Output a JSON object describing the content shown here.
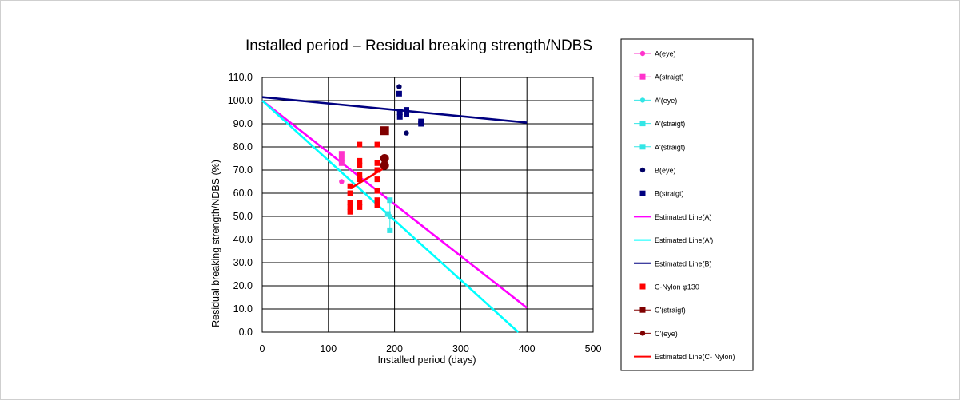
{
  "chart_data": {
    "type": "scatter",
    "title": "Installed period – Residual breaking strength/NDBS",
    "xlabel": "Installed period (days)",
    "ylabel": "Residual breaking strength/NDBS (%)",
    "xlim": [
      0,
      500
    ],
    "ylim": [
      0,
      110
    ],
    "x_ticks": [
      0,
      100,
      200,
      300,
      400,
      500
    ],
    "x_tick_labels": [
      "0",
      "100",
      "200",
      "300",
      "400",
      "500"
    ],
    "y_ticks": [
      0,
      10,
      20,
      30,
      40,
      50,
      60,
      70,
      80,
      90,
      100,
      110
    ],
    "y_tick_labels": [
      "0.0",
      "10.0",
      "20.0",
      "30.0",
      "40.0",
      "50.0",
      "60.0",
      "70.0",
      "80.0",
      "90.0",
      "100.0",
      "110.0"
    ],
    "grid": true,
    "legend_position": "right",
    "series": [
      {
        "name": "A(eye)",
        "marker": "circle",
        "color": "#ff33cc",
        "legend_line": true,
        "points": [
          [
            120,
            65
          ]
        ]
      },
      {
        "name": "A(straigt)",
        "marker": "square",
        "color": "#ff33cc",
        "legend_line": true,
        "points": [
          [
            120,
            77
          ],
          [
            120,
            75
          ],
          [
            120,
            73
          ]
        ]
      },
      {
        "name": "A'(eye)",
        "marker": "circle",
        "color": "#33e6e6",
        "legend_line": true,
        "points": [
          [
            193,
            50
          ]
        ]
      },
      {
        "name": "A'(straigt)",
        "marker": "square",
        "color": "#33e6e6",
        "legend_line": true,
        "points": [
          [
            193,
            57
          ],
          [
            193,
            44
          ]
        ]
      },
      {
        "name": "A'(straigt)",
        "marker": "square",
        "color": "#33e6e6",
        "legend_line": true,
        "points": [
          [
            190,
            51
          ]
        ]
      },
      {
        "name": "B(eye)",
        "marker": "circle",
        "color": "#000066",
        "legend_line": false,
        "points": [
          [
            207,
            106
          ],
          [
            218,
            86
          ]
        ]
      },
      {
        "name": "B(straigt)",
        "marker": "square",
        "color": "#000080",
        "legend_line": false,
        "points": [
          [
            207,
            103
          ],
          [
            208,
            93
          ],
          [
            208,
            95
          ],
          [
            218,
            96
          ],
          [
            218,
            94
          ],
          [
            240,
            91
          ],
          [
            240,
            90
          ]
        ]
      },
      {
        "name": "Estimated Line(A)",
        "type": "line",
        "color": "#ff00ff",
        "points": [
          [
            0,
            100
          ],
          [
            400,
            10.5
          ]
        ]
      },
      {
        "name": "Estimated Line(A')",
        "type": "line",
        "color": "#00ffff",
        "points": [
          [
            0,
            100
          ],
          [
            387,
            0
          ]
        ]
      },
      {
        "name": "Estimated Line(B)",
        "type": "line",
        "color": "#000080",
        "points": [
          [
            0,
            101.5
          ],
          [
            400,
            90.5
          ]
        ]
      },
      {
        "name": "C-Nylon φ130",
        "marker": "square",
        "color": "#ff0000",
        "legend_line": false,
        "points": [
          [
            133,
            63
          ],
          [
            133,
            60
          ],
          [
            133,
            56
          ],
          [
            133,
            54
          ],
          [
            133,
            52
          ],
          [
            147,
            81
          ],
          [
            147,
            74
          ],
          [
            147,
            72
          ],
          [
            147,
            68
          ],
          [
            147,
            66
          ],
          [
            147,
            56
          ],
          [
            147,
            54
          ],
          [
            174,
            81
          ],
          [
            174,
            73
          ],
          [
            174,
            70
          ],
          [
            174,
            66
          ],
          [
            174,
            61
          ],
          [
            174,
            57
          ],
          [
            174,
            55
          ]
        ]
      },
      {
        "name": "C'(straigt)",
        "marker": "square-large",
        "color": "#800000",
        "legend_line": true,
        "points": [
          [
            185,
            87
          ]
        ]
      },
      {
        "name": "C'(eye)",
        "marker": "circle-large",
        "color": "#800000",
        "legend_line": true,
        "points": [
          [
            185,
            75
          ],
          [
            185,
            72
          ]
        ]
      },
      {
        "name": "Estimated Line(C- Nylon)",
        "type": "line",
        "color": "#ff0000",
        "points": [
          [
            133,
            62
          ],
          [
            185,
            71
          ]
        ]
      }
    ]
  }
}
